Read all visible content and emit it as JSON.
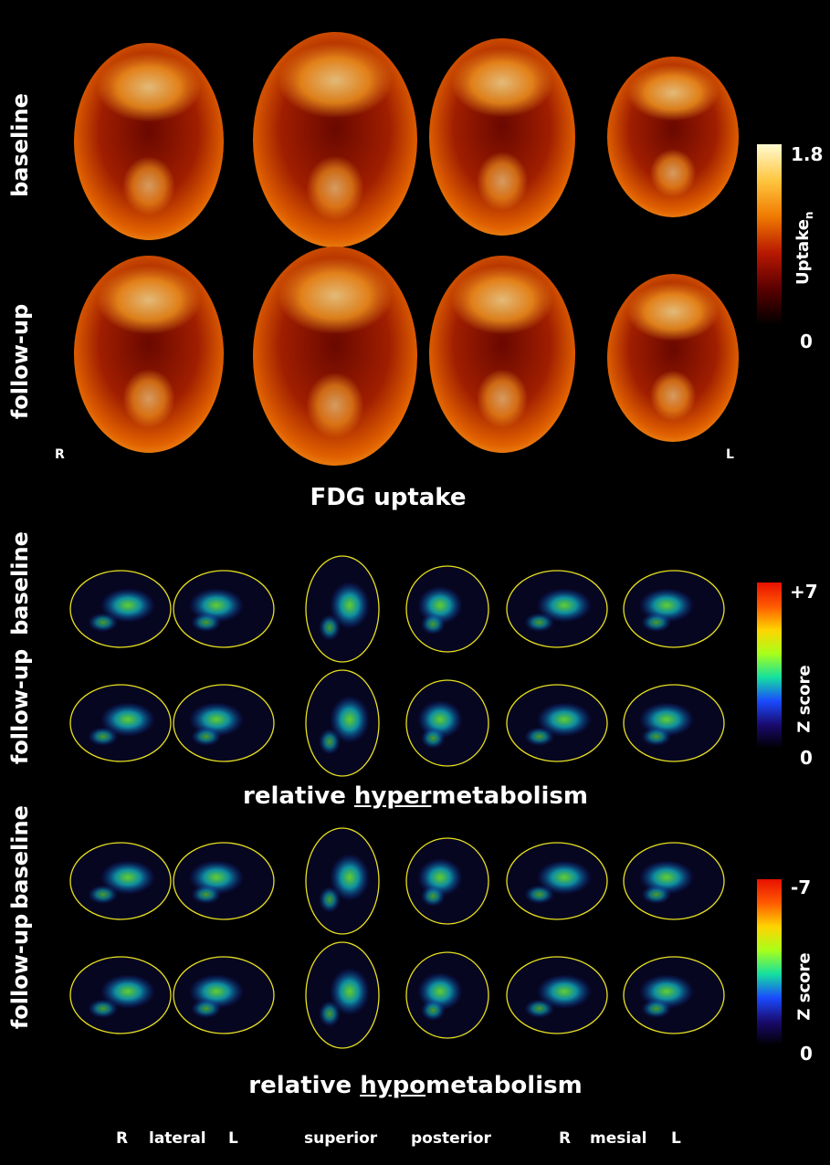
{
  "section1": {
    "row_labels": [
      "baseline",
      "follow-up"
    ],
    "title": "FDG uptake",
    "hemisphere_left_marker": "R",
    "hemisphere_right_marker": "L",
    "colorbar": {
      "max": "1.8",
      "min": "0",
      "label_main": "Uptake",
      "label_sub": "n",
      "colors": [
        "#000000",
        "#5a0000",
        "#b81800",
        "#f07a00",
        "#ffc640",
        "#fffad0"
      ]
    }
  },
  "section2": {
    "row_labels": [
      "baseline",
      "follow-up"
    ],
    "title_pre": "relative ",
    "title_underlined": "hyper",
    "title_post": "metabolism",
    "colorbar": {
      "max": "+7",
      "min": "0",
      "label": "Z score",
      "colors": [
        "#000000",
        "#1a0a6e",
        "#1a4aff",
        "#14e0a0",
        "#a8ff1a",
        "#ffd400",
        "#ff5a00",
        "#e81000"
      ]
    }
  },
  "section3": {
    "row_labels": [
      "baseline",
      "follow-up"
    ],
    "title_pre": "relative ",
    "title_underlined": "hypo",
    "title_post": "metabolism",
    "colorbar": {
      "max": "-7",
      "min": "0",
      "label": "Z score",
      "colors": [
        "#000000",
        "#1a0a6e",
        "#1a4aff",
        "#14e0a0",
        "#a8ff1a",
        "#ffd400",
        "#ff5a00",
        "#e81000"
      ]
    }
  },
  "footer": {
    "lateral_r": "R",
    "lateral": "lateral",
    "lateral_l": "L",
    "superior": "superior",
    "posterior": "posterior",
    "mesial_r": "R",
    "mesial": "mesial",
    "mesial_l": "L"
  }
}
